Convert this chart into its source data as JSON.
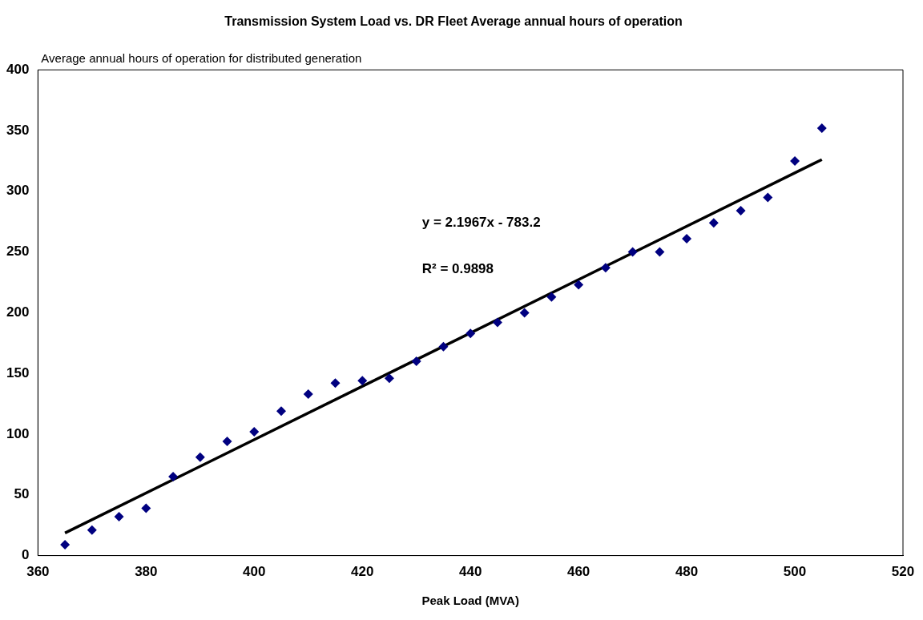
{
  "chart_data": {
    "type": "scatter",
    "title": "Transmission System Load vs. DR Fleet Average annual hours of operation",
    "xlabel": "Peak Load (MVA)",
    "ylabel": "Average annual hours of operation for distributed generation",
    "x": [
      365,
      370,
      375,
      380,
      385,
      390,
      395,
      400,
      405,
      410,
      415,
      420,
      425,
      430,
      435,
      440,
      445,
      450,
      455,
      460,
      465,
      470,
      475,
      480,
      485,
      490,
      495,
      500,
      505
    ],
    "series": [
      {
        "color": "#000080",
        "marker": "diamond",
        "values": [
          9,
          21,
          32,
          39,
          65,
          81,
          94,
          102,
          119,
          133,
          142,
          144,
          146,
          160,
          172,
          183,
          192,
          200,
          213,
          223,
          237,
          250,
          250,
          261,
          274,
          284,
          295,
          325,
          352
        ]
      },
      {
        "type": "line",
        "color": "#000000",
        "marker": "none",
        "x": [
          365,
          505
        ],
        "values": [
          18.6,
          326.1
        ]
      }
    ],
    "annotations": [
      "y = 2.1967x - 783.2",
      "R² = 0.9898"
    ],
    "xlim": [
      360,
      520
    ],
    "xticks": [
      360,
      380,
      400,
      420,
      440,
      460,
      480,
      500,
      520
    ],
    "ylim": [
      0,
      400
    ],
    "yticks": [
      0,
      50,
      100,
      150,
      200,
      250,
      300,
      350,
      400
    ],
    "grid": false,
    "legend": false
  }
}
